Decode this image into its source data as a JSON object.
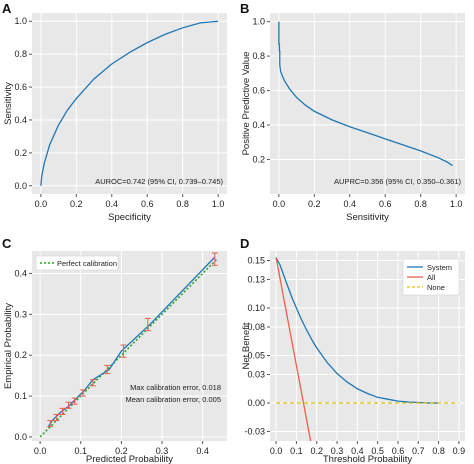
{
  "colors": {
    "system": "#1f77b4",
    "all": "#e8604c",
    "none": "#e6c200",
    "perfect": "#2ca02c",
    "errorbar": "#e8604c"
  },
  "chart_data": [
    {
      "panel": "A",
      "type": "line",
      "xlabel": "Specificity",
      "ylabel": "Sensitivity",
      "xlim": [
        -0.05,
        1.05
      ],
      "ylim": [
        -0.05,
        1.05
      ],
      "xticks": [
        0.0,
        0.2,
        0.4,
        0.6,
        0.8,
        1.0
      ],
      "yticks": [
        0.0,
        0.2,
        0.4,
        0.6,
        0.8,
        1.0
      ],
      "xtick_labels": [
        "0.0",
        "0.2",
        "0.4",
        "0.6",
        "0.8",
        "1.0"
      ],
      "ytick_labels": [
        "0.0",
        "0.2",
        "0.4",
        "0.6",
        "0.8",
        "1.0"
      ],
      "grid": true,
      "annotation": "AUROC=0.742 (95% CI, 0.739–0.745)",
      "series": [
        {
          "color": "system",
          "x": [
            0.0,
            0.005,
            0.02,
            0.05,
            0.1,
            0.15,
            0.2,
            0.3,
            0.4,
            0.5,
            0.6,
            0.7,
            0.8,
            0.9,
            1.0
          ],
          "y": [
            0.0,
            0.06,
            0.14,
            0.25,
            0.37,
            0.46,
            0.53,
            0.65,
            0.74,
            0.81,
            0.87,
            0.92,
            0.96,
            0.99,
            1.0
          ]
        }
      ]
    },
    {
      "panel": "B",
      "type": "line",
      "xlabel": "Sensitivity",
      "ylabel": "Positive Predictive Value",
      "xlim": [
        -0.05,
        1.05
      ],
      "ylim": [
        0.0,
        1.05
      ],
      "xticks": [
        0.0,
        0.2,
        0.4,
        0.6,
        0.8,
        1.0
      ],
      "yticks": [
        0.2,
        0.4,
        0.6,
        0.8,
        1.0
      ],
      "xtick_labels": [
        "0.0",
        "0.2",
        "0.4",
        "0.6",
        "0.8",
        "1.0"
      ],
      "ytick_labels": [
        "0.2",
        "0.4",
        "0.6",
        "0.8",
        "1.0"
      ],
      "grid": true,
      "annotation": "AUPRC=0.356 (95% CI, 0.350–0.361)",
      "series": [
        {
          "color": "system",
          "x": [
            0.0,
            0.0,
            0.003,
            0.003,
            0.005,
            0.005,
            0.01,
            0.03,
            0.06,
            0.1,
            0.15,
            0.2,
            0.3,
            0.4,
            0.5,
            0.6,
            0.7,
            0.8,
            0.9,
            0.95,
            0.98
          ],
          "y": [
            1.0,
            0.87,
            0.87,
            0.83,
            0.83,
            0.75,
            0.71,
            0.66,
            0.61,
            0.56,
            0.515,
            0.48,
            0.43,
            0.39,
            0.355,
            0.32,
            0.285,
            0.25,
            0.21,
            0.185,
            0.165
          ]
        }
      ]
    },
    {
      "panel": "C",
      "type": "line",
      "xlabel": "Predicted Probability",
      "ylabel": "Empirical Probability",
      "xlim": [
        -0.02,
        0.46
      ],
      "ylim": [
        -0.01,
        0.455
      ],
      "xticks": [
        0.0,
        0.1,
        0.2,
        0.3,
        0.4
      ],
      "yticks": [
        0.0,
        0.1,
        0.2,
        0.3,
        0.4
      ],
      "xtick_labels": [
        "0.0",
        "0.1",
        "0.2",
        "0.3",
        "0.4"
      ],
      "ytick_labels": [
        "0.0",
        "0.1",
        "0.2",
        "0.3",
        "0.4"
      ],
      "grid": true,
      "legend": {
        "entries": [
          "Perfect calibration"
        ],
        "placement": "top-left"
      },
      "annotations": [
        "Max calibration error, 0.018",
        "Mean calibration error, 0.005"
      ],
      "perfect": {
        "x": [
          0.0,
          0.435
        ],
        "y": [
          0.0,
          0.435
        ]
      },
      "series": [
        {
          "color": "system",
          "x": [
            0.02,
            0.03,
            0.05,
            0.07,
            0.09,
            0.11,
            0.13,
            0.17,
            0.2,
            0.27,
            0.43
          ],
          "y": [
            0.025,
            0.04,
            0.06,
            0.075,
            0.095,
            0.115,
            0.14,
            0.165,
            0.21,
            0.275,
            0.44
          ]
        }
      ],
      "error_bars": [
        {
          "x": 0.025,
          "low": 0.025,
          "high": 0.04
        },
        {
          "x": 0.04,
          "low": 0.04,
          "high": 0.055
        },
        {
          "x": 0.055,
          "low": 0.055,
          "high": 0.07
        },
        {
          "x": 0.07,
          "low": 0.07,
          "high": 0.085
        },
        {
          "x": 0.085,
          "low": 0.08,
          "high": 0.095
        },
        {
          "x": 0.105,
          "low": 0.1,
          "high": 0.115
        },
        {
          "x": 0.13,
          "low": 0.125,
          "high": 0.14
        },
        {
          "x": 0.165,
          "low": 0.155,
          "high": 0.175
        },
        {
          "x": 0.205,
          "low": 0.195,
          "high": 0.225
        },
        {
          "x": 0.265,
          "low": 0.26,
          "high": 0.29
        },
        {
          "x": 0.43,
          "low": 0.42,
          "high": 0.45
        }
      ]
    },
    {
      "panel": "D",
      "type": "line",
      "xlabel": "Threshold Probability",
      "ylabel": "Net Benefit",
      "xlim": [
        -0.03,
        0.93
      ],
      "ylim": [
        -0.04,
        0.16
      ],
      "xticks": [
        0.0,
        0.1,
        0.2,
        0.3,
        0.4,
        0.5,
        0.6,
        0.7,
        0.8,
        0.9
      ],
      "yticks": [
        -0.03,
        0.0,
        0.03,
        0.05,
        0.08,
        0.1,
        0.13,
        0.15
      ],
      "xtick_labels": [
        "0.0",
        "0.1",
        "0.2",
        "0.3",
        "0.4",
        "0.5",
        "0.6",
        "0.7",
        "0.8",
        "0.9"
      ],
      "ytick_labels": [
        "-0.03",
        "0.00",
        "0.03",
        "0.05",
        "0.08",
        "0.10",
        "0.13",
        "0.15"
      ],
      "grid": true,
      "legend": {
        "entries": [
          "System",
          "All",
          "None"
        ],
        "placement": "top-right"
      },
      "series": [
        {
          "name": "System",
          "color": "system",
          "x": [
            0.0,
            0.02,
            0.05,
            0.08,
            0.1,
            0.12,
            0.15,
            0.18,
            0.2,
            0.25,
            0.3,
            0.35,
            0.4,
            0.45,
            0.5,
            0.55,
            0.6,
            0.65,
            0.7,
            0.75,
            0.8
          ],
          "y": [
            0.153,
            0.145,
            0.127,
            0.11,
            0.1,
            0.09,
            0.077,
            0.065,
            0.058,
            0.043,
            0.031,
            0.022,
            0.015,
            0.01,
            0.006,
            0.004,
            0.002,
            0.001,
            0.0005,
            0.0,
            0.0
          ]
        },
        {
          "name": "All",
          "color": "all",
          "x": [
            0.0,
            0.17
          ],
          "y": [
            0.153,
            -0.04
          ]
        },
        {
          "name": "None",
          "color": "none",
          "dashed": true,
          "x": [
            0.0,
            0.9
          ],
          "y": [
            0.0,
            0.0
          ]
        }
      ]
    }
  ],
  "panel_letters": [
    "A",
    "B",
    "C",
    "D"
  ]
}
